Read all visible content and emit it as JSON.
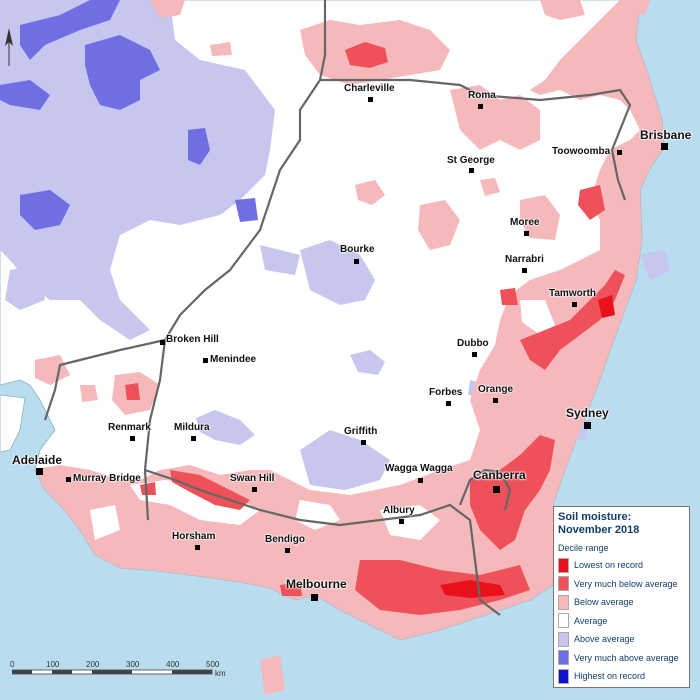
{
  "legend": {
    "title_line1": "Soil moisture:",
    "title_line2": "November 2018",
    "subtitle": "Decile range",
    "items": [
      {
        "label": "Lowest on record",
        "color": "#e8111c"
      },
      {
        "label": "Very much below average",
        "color": "#ee5159"
      },
      {
        "label": "Below average",
        "color": "#f5b8bb"
      },
      {
        "label": "Average",
        "color": "#ffffff"
      },
      {
        "label": "Above average",
        "color": "#c6c6ee"
      },
      {
        "label": "Very much above average",
        "color": "#6f6fe3"
      },
      {
        "label": "Highest on record",
        "color": "#1010cf"
      }
    ]
  },
  "places": [
    {
      "name": "Charleville",
      "size": "small"
    },
    {
      "name": "Roma",
      "size": "small"
    },
    {
      "name": "Brisbane",
      "size": "large"
    },
    {
      "name": "Toowoomba",
      "size": "small"
    },
    {
      "name": "St George",
      "size": "small"
    },
    {
      "name": "Moree",
      "size": "small"
    },
    {
      "name": "Bourke",
      "size": "small"
    },
    {
      "name": "Narrabri",
      "size": "small"
    },
    {
      "name": "Tamworth",
      "size": "small"
    },
    {
      "name": "Broken Hill",
      "size": "small"
    },
    {
      "name": "Menindee",
      "size": "small"
    },
    {
      "name": "Dubbo",
      "size": "small"
    },
    {
      "name": "Forbes",
      "size": "small"
    },
    {
      "name": "Orange",
      "size": "small"
    },
    {
      "name": "Sydney",
      "size": "large"
    },
    {
      "name": "Renmark",
      "size": "small"
    },
    {
      "name": "Mildura",
      "size": "small"
    },
    {
      "name": "Griffith",
      "size": "small"
    },
    {
      "name": "Adelaide",
      "size": "large"
    },
    {
      "name": "Murray Bridge",
      "size": "small"
    },
    {
      "name": "Swan Hill",
      "size": "small"
    },
    {
      "name": "Wagga Wagga",
      "size": "small"
    },
    {
      "name": "Canberra",
      "size": "large"
    },
    {
      "name": "Albury",
      "size": "small"
    },
    {
      "name": "Horsham",
      "size": "small"
    },
    {
      "name": "Bendigo",
      "size": "small"
    },
    {
      "name": "Melbourne",
      "size": "large"
    }
  ],
  "scalebar": {
    "ticks": [
      "0",
      "100",
      "200",
      "300",
      "400",
      "500"
    ],
    "unit": "km"
  },
  "colors": {
    "ocean": "#b9dcef",
    "border": "#666666"
  }
}
